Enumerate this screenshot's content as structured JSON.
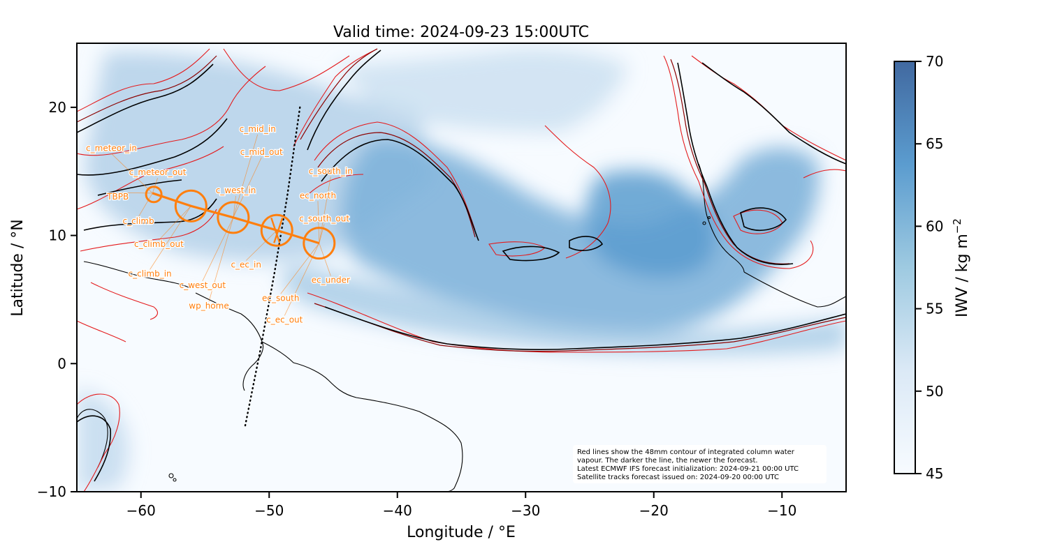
{
  "title": "Valid time: 2024-09-23 15:00UTC",
  "xlabel": "Longitude / °E",
  "ylabel": "Latitude / °N",
  "colorbar": {
    "label": "IWV / kg m",
    "label_sup": "−2",
    "ticks": [
      "45",
      "50",
      "55",
      "60",
      "65",
      "70"
    ],
    "range": [
      45,
      70
    ],
    "color_low": "#f7fbff",
    "color_high": "#4169a0"
  },
  "map": {
    "lon_range": [
      -65,
      -5
    ],
    "lat_range": [
      -10,
      25
    ],
    "x_ticks": [
      {
        "value": -60,
        "label": "−60"
      },
      {
        "value": -50,
        "label": "−50"
      },
      {
        "value": -40,
        "label": "−40"
      },
      {
        "value": -30,
        "label": "−30"
      },
      {
        "value": -20,
        "label": "−20"
      },
      {
        "value": -10,
        "label": "−10"
      }
    ],
    "y_ticks": [
      {
        "value": 20,
        "label": "20"
      },
      {
        "value": 10,
        "label": "10"
      },
      {
        "value": 0,
        "label": "0"
      },
      {
        "value": -10,
        "label": "−10"
      }
    ],
    "contour_color_old": "#e41a1c",
    "contour_color_mid": "#8b0000",
    "contour_color_new": "#000000",
    "track_color": "#ff7f0e"
  },
  "flight_track": [
    {
      "lon": -59.1,
      "lat": 13.3
    },
    {
      "lon": -56.1,
      "lat": 12.3
    },
    {
      "lon": -52.8,
      "lat": 11.4
    },
    {
      "lon": -49.4,
      "lat": 10.4
    },
    {
      "lon": -46.1,
      "lat": 9.4
    }
  ],
  "circles": [
    {
      "lon": -59.0,
      "lat": 13.2,
      "radius_deg": 0.6
    },
    {
      "lon": -56.1,
      "lat": 12.3,
      "radius_deg": 1.2
    },
    {
      "lon": -52.8,
      "lat": 11.4,
      "radius_deg": 1.2
    },
    {
      "lon": -49.4,
      "lat": 10.4,
      "radius_deg": 1.2
    },
    {
      "lon": -46.1,
      "lat": 9.4,
      "radius_deg": 1.2
    }
  ],
  "waypoints": [
    {
      "name": "c_meteor_in",
      "lon": -62.3,
      "lat": 16.6
    },
    {
      "name": "c_meteor_out",
      "lon": -58.7,
      "lat": 14.7
    },
    {
      "name": "TBPB",
      "lon": -61.8,
      "lat": 12.8
    },
    {
      "name": "c_climb",
      "lon": -60.2,
      "lat": 10.9
    },
    {
      "name": "c_climb_out",
      "lon": -58.6,
      "lat": 9.1
    },
    {
      "name": "c_climb_in",
      "lon": -59.3,
      "lat": 6.8
    },
    {
      "name": "c_mid_in",
      "lon": -50.9,
      "lat": 18.1
    },
    {
      "name": "c_mid_out",
      "lon": -50.6,
      "lat": 16.3
    },
    {
      "name": "c_west_in",
      "lon": -52.6,
      "lat": 13.3
    },
    {
      "name": "c_west_out",
      "lon": -55.2,
      "lat": 5.9
    },
    {
      "name": "wp_home",
      "lon": -54.7,
      "lat": 4.3
    },
    {
      "name": "c_south_in",
      "lon": -45.2,
      "lat": 14.8
    },
    {
      "name": "ec_north",
      "lon": -46.2,
      "lat": 12.9
    },
    {
      "name": "c_south_out",
      "lon": -45.7,
      "lat": 11.1
    },
    {
      "name": "c_ec_in",
      "lon": -51.8,
      "lat": 7.5
    },
    {
      "name": "ec_under",
      "lon": -45.2,
      "lat": 6.3
    },
    {
      "name": "ec_south",
      "lon": -49.1,
      "lat": 4.9
    },
    {
      "name": "c_ec_out",
      "lon": -48.8,
      "lat": 3.2
    }
  ],
  "satellite_track": [
    {
      "lon": -47.6,
      "lat": 20.0
    },
    {
      "lon": -48.6,
      "lat": 13.0
    },
    {
      "lon": -49.6,
      "lat": 7.0
    },
    {
      "lon": -50.7,
      "lat": 1.0
    },
    {
      "lon": -51.9,
      "lat": -5.0
    }
  ],
  "note": [
    "Red lines show the 48mm contour of integrated column water",
    "vapour. The darker the line, the newer the forecast.",
    "Latest ECMWF IFS forecast initialization: 2024-09-21 00:00 UTC",
    "Satellite tracks forecast issued on: 2024-09-20 00:00 UTC"
  ]
}
